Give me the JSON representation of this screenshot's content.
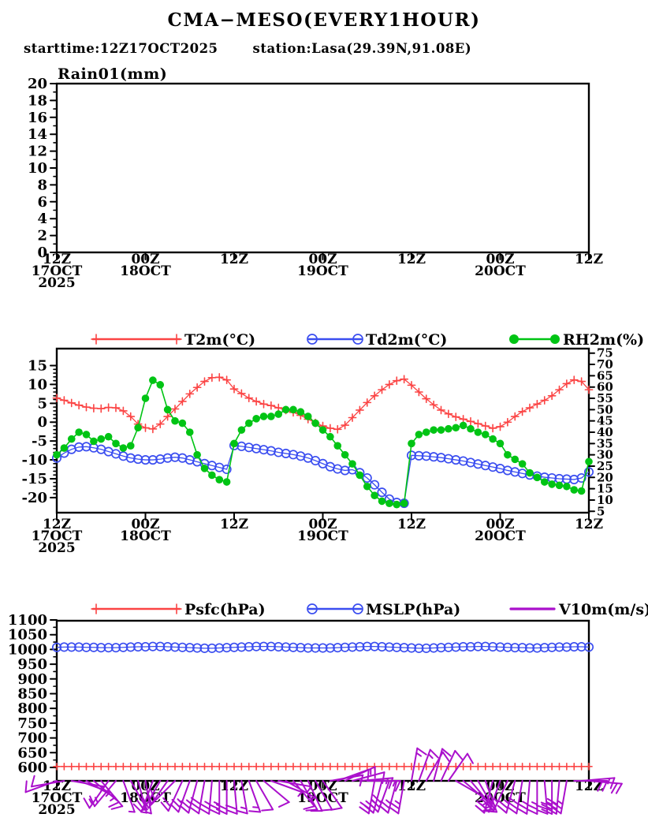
{
  "header": {
    "title": "CMA−MESO(EVERY1HOUR)",
    "starttime_label": "starttime:12Z17OCT2025",
    "station_label": "station:Lasa(29.39N,91.08E)"
  },
  "colors": {
    "red": "#fb4444",
    "blue": "#3b4ef0",
    "green": "#00c414",
    "purple": "#aa10cc",
    "axis": "#000000"
  },
  "time_axis": {
    "total_hours": 72,
    "major_step_hours": 12,
    "labels": [
      {
        "hour": 0,
        "line1": "12Z",
        "line2": "17OCT",
        "line3": "2025"
      },
      {
        "hour": 12,
        "line1": "00Z",
        "line2": "18OCT",
        "line3": ""
      },
      {
        "hour": 24,
        "line1": "12Z",
        "line2": "",
        "line3": ""
      },
      {
        "hour": 36,
        "line1": "00Z",
        "line2": "19OCT",
        "line3": ""
      },
      {
        "hour": 48,
        "line1": "12Z",
        "line2": "",
        "line3": ""
      },
      {
        "hour": 60,
        "line1": "00Z",
        "line2": "20OCT",
        "line3": ""
      },
      {
        "hour": 72,
        "line1": "12Z",
        "line2": "",
        "line3": ""
      }
    ]
  },
  "chart_data": [
    {
      "id": "rain",
      "type": "bar",
      "title": "Rain01(mm)",
      "left_axis": {
        "min": 0,
        "max": 20,
        "step": 2,
        "minor_step": 1
      },
      "series": [
        {
          "id": "rain01",
          "label": "Rain01(mm)",
          "values": [],
          "note_no_data_plotted": true
        }
      ]
    },
    {
      "id": "surface",
      "type": "line",
      "left_axis": {
        "min": -20,
        "max": 15,
        "step": 5,
        "minor_step": 1
      },
      "right_axis": {
        "min": 5,
        "max": 75,
        "step": 5
      },
      "series": [
        {
          "id": "t2m",
          "label": "T2m(°C)",
          "axis": "left",
          "color": "red",
          "marker": "plus",
          "values": [
            6.4,
            5.8,
            5.1,
            4.5,
            4.0,
            3.7,
            3.6,
            3.9,
            3.8,
            3.0,
            1.5,
            -0.5,
            -1.5,
            -1.8,
            -0.5,
            1.5,
            3.5,
            5.5,
            7.5,
            9.2,
            10.8,
            11.8,
            11.9,
            11.2,
            8.8,
            7.6,
            6.4,
            5.5,
            4.8,
            4.4,
            3.8,
            3.2,
            2.6,
            1.8,
            0.8,
            -0.2,
            -1.0,
            -1.6,
            -1.9,
            -0.8,
            1.2,
            3.2,
            5.2,
            7.0,
            8.6,
            10.0,
            11.0,
            11.4,
            9.8,
            8.0,
            6.2,
            4.6,
            3.2,
            2.2,
            1.4,
            0.8,
            0.2,
            -0.4,
            -1.0,
            -1.6,
            -1.2,
            0.0,
            1.5,
            2.8,
            3.8,
            4.8,
            5.8,
            7.0,
            8.6,
            10.2,
            11.2,
            10.8,
            8.6
          ]
        },
        {
          "id": "td2m",
          "label": "Td2m(°C)",
          "axis": "left",
          "color": "blue",
          "marker": "open-circle",
          "values": [
            -9.5,
            -8.2,
            -7.2,
            -6.6,
            -6.5,
            -6.8,
            -7.2,
            -7.8,
            -8.4,
            -9.0,
            -9.5,
            -9.8,
            -10.0,
            -10.0,
            -9.8,
            -9.5,
            -9.3,
            -9.5,
            -10.0,
            -10.5,
            -11.0,
            -11.5,
            -12.0,
            -12.5,
            -6.2,
            -6.4,
            -6.7,
            -7.0,
            -7.3,
            -7.6,
            -8.0,
            -8.3,
            -8.6,
            -9.0,
            -9.5,
            -10.2,
            -11.0,
            -11.8,
            -12.4,
            -12.8,
            -12.6,
            -13.4,
            -14.8,
            -16.6,
            -18.6,
            -20.4,
            -21.3,
            -21.5,
            -8.8,
            -8.9,
            -9.0,
            -9.2,
            -9.4,
            -9.7,
            -10.0,
            -10.3,
            -10.7,
            -11.1,
            -11.5,
            -11.9,
            -12.3,
            -12.8,
            -13.2,
            -13.6,
            -14.0,
            -14.3,
            -14.6,
            -14.8,
            -15.0,
            -15.1,
            -15.2,
            -14.8,
            -13.2
          ]
        },
        {
          "id": "rh2m",
          "label": "RH2m(%)",
          "axis": "right",
          "color": "green",
          "marker": "dot",
          "values": [
            30,
            33,
            37,
            40,
            39,
            36,
            37,
            38,
            35,
            33,
            34,
            42,
            55,
            63,
            61,
            50,
            45,
            44,
            40,
            30,
            24,
            21,
            19,
            18,
            35,
            41,
            44,
            46,
            47,
            47,
            48,
            50,
            50,
            49,
            47,
            44,
            41,
            38,
            34,
            30,
            26,
            21,
            16,
            12,
            9.5,
            8.5,
            8,
            8.5,
            35,
            39,
            40,
            41,
            41,
            41.5,
            42,
            43,
            41.5,
            40,
            39,
            37,
            35,
            30,
            28,
            26,
            22,
            20,
            18,
            17,
            16.5,
            16,
            14.5,
            14,
            27
          ]
        }
      ]
    },
    {
      "id": "pressure_wind",
      "type": "line",
      "left_axis": {
        "min": 600,
        "max": 1100,
        "step": 50,
        "minor_step": 25
      },
      "series": [
        {
          "id": "psfc",
          "label": "Psfc(hPa)",
          "axis": "left",
          "color": "red",
          "marker": "plus",
          "constant_value": 603,
          "count": 73
        },
        {
          "id": "mslp",
          "label": "MSLP(hPa)",
          "axis": "left",
          "color": "blue",
          "marker": "open-circle",
          "values": [
            1007,
            1008,
            1008,
            1008,
            1007,
            1007,
            1006,
            1006,
            1006,
            1007,
            1008,
            1009,
            1009,
            1010,
            1010,
            1009,
            1008,
            1007,
            1006,
            1005,
            1004,
            1004,
            1005,
            1006,
            1007,
            1008,
            1009,
            1010,
            1010,
            1010,
            1009,
            1008,
            1007,
            1006,
            1005,
            1005,
            1005,
            1005,
            1006,
            1007,
            1008,
            1009,
            1010,
            1010,
            1009,
            1008,
            1007,
            1006,
            1005,
            1004,
            1004,
            1005,
            1006,
            1007,
            1008,
            1009,
            1009,
            1010,
            1010,
            1009,
            1008,
            1007,
            1006,
            1006,
            1005,
            1005,
            1006,
            1007,
            1008,
            1008,
            1009,
            1009,
            1008
          ]
        },
        {
          "id": "v10m",
          "label": "V10m(m/s)",
          "color": "purple",
          "marker": "line",
          "type": "barbs",
          "barbs": [
            {
              "d": 250,
              "s": 5
            },
            {
              "d": 260,
              "s": 4
            },
            {
              "d": 100,
              "s": 3
            },
            {
              "d": 110,
              "s": 3
            },
            {
              "d": 120,
              "s": 3
            },
            {
              "d": 130,
              "s": 4
            },
            {
              "d": 140,
              "s": 5
            },
            {
              "d": 215,
              "s": 6
            },
            {
              "d": 220,
              "s": 6
            },
            {
              "d": 160,
              "s": 3
            },
            {
              "d": 150,
              "s": 3
            },
            {
              "d": 165,
              "s": 2
            },
            {
              "d": 170,
              "s": 3
            },
            {
              "d": 200,
              "s": 5
            },
            {
              "d": 210,
              "s": 6
            },
            {
              "d": 215,
              "s": 7
            },
            {
              "d": 225,
              "s": 8
            },
            {
              "d": 205,
              "s": 9
            },
            {
              "d": 200,
              "s": 10
            },
            {
              "d": 195,
              "s": 11
            },
            {
              "d": 190,
              "s": 12
            },
            {
              "d": 185,
              "s": 11
            },
            {
              "d": 180,
              "s": 10
            },
            {
              "d": 180,
              "s": 9
            },
            {
              "d": 175,
              "s": 8
            },
            {
              "d": 170,
              "s": 7
            },
            {
              "d": 160,
              "s": 6
            },
            {
              "d": 150,
              "s": 5
            },
            {
              "d": 130,
              "s": 4
            },
            {
              "d": 110,
              "s": 3
            },
            {
              "d": 100,
              "s": 3
            },
            {
              "d": 120,
              "s": 3
            },
            {
              "d": 140,
              "s": 4
            },
            {
              "d": 150,
              "s": 4
            },
            {
              "d": 155,
              "s": 5
            },
            {
              "d": 150,
              "s": 4
            },
            {
              "d": 145,
              "s": 4
            },
            {
              "d": 80,
              "s": 4
            },
            {
              "d": 70,
              "s": 5
            },
            {
              "d": 65,
              "s": 6
            },
            {
              "d": 75,
              "s": 5
            },
            {
              "d": 85,
              "s": 6
            },
            {
              "d": 90,
              "s": 7
            },
            {
              "d": 190,
              "s": 8
            },
            {
              "d": 195,
              "s": 10
            },
            {
              "d": 200,
              "s": 12
            },
            {
              "d": 195,
              "s": 11
            },
            {
              "d": 190,
              "s": 10
            },
            {
              "d": 10,
              "s": 6
            },
            {
              "d": 20,
              "s": 7
            },
            {
              "d": 30,
              "s": 5
            },
            {
              "d": 15,
              "s": 5
            },
            {
              "d": 25,
              "s": 4
            },
            {
              "d": 35,
              "s": 4
            },
            {
              "d": 120,
              "s": 3
            },
            {
              "d": 130,
              "s": 3
            },
            {
              "d": 140,
              "s": 3
            },
            {
              "d": 150,
              "s": 4
            },
            {
              "d": 160,
              "s": 4
            },
            {
              "d": 195,
              "s": 8
            },
            {
              "d": 200,
              "s": 9
            },
            {
              "d": 205,
              "s": 10
            },
            {
              "d": 195,
              "s": 11
            },
            {
              "d": 190,
              "s": 12
            },
            {
              "d": 185,
              "s": 11
            },
            {
              "d": 180,
              "s": 10
            },
            {
              "d": 175,
              "s": 10
            },
            {
              "d": 180,
              "s": 11
            },
            {
              "d": 185,
              "s": 12
            },
            {
              "d": 190,
              "s": 10
            },
            {
              "d": 90,
              "s": 8
            },
            {
              "d": 85,
              "s": 7
            },
            {
              "d": 95,
              "s": 8
            }
          ]
        }
      ]
    }
  ]
}
